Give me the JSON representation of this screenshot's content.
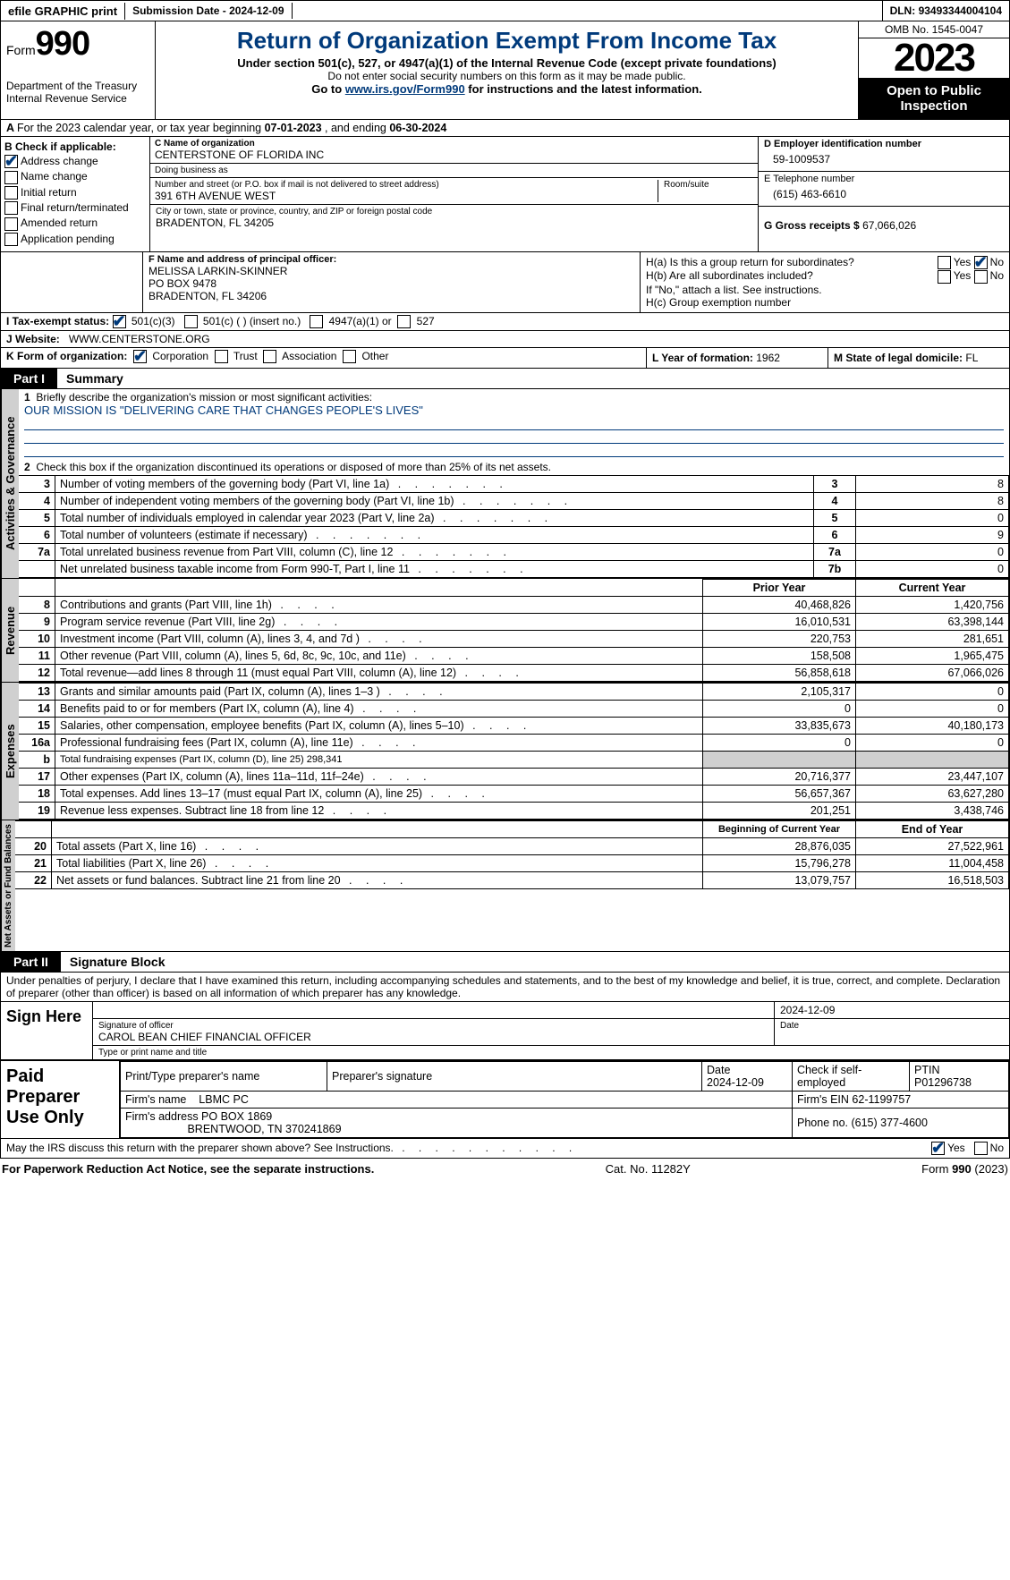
{
  "topbar": {
    "efile": "efile GRAPHIC print",
    "subdate_label": "Submission Date - ",
    "subdate": "2024-12-09",
    "dln_label": "DLN: ",
    "dln": "93493344004104"
  },
  "header": {
    "form": "Form",
    "form_num": "990",
    "dept": "Department of the Treasury",
    "irs": "Internal Revenue Service",
    "title": "Return of Organization Exempt From Income Tax",
    "subtitle": "Under section 501(c), 527, or 4947(a)(1) of the Internal Revenue Code (except private foundations)",
    "note": "Do not enter social security numbers on this form as it may be made public.",
    "goto_pre": "Go to ",
    "goto_link": "www.irs.gov/Form990",
    "goto_post": " for instructions and the latest information.",
    "omb": "OMB No. 1545-0047",
    "year": "2023",
    "open": "Open to Public Inspection"
  },
  "lineA": {
    "text_pre": "For the 2023 calendar year, or tax year beginning ",
    "begin": "07-01-2023",
    "mid": "   , and ending ",
    "end": "06-30-2024"
  },
  "boxB": {
    "title": "B Check if applicable:",
    "opts": [
      "Address change",
      "Name change",
      "Initial return",
      "Final return/terminated",
      "Amended return",
      "Application pending"
    ],
    "checked_idx": 0
  },
  "boxC": {
    "name_label": "C Name of organization",
    "name": "CENTERSTONE OF FLORIDA INC",
    "dba_label": "Doing business as",
    "dba": "",
    "street_label": "Number and street (or P.O. box if mail is not delivered to street address)",
    "street": "391 6TH AVENUE WEST",
    "room_label": "Room/suite",
    "city_label": "City or town, state or province, country, and ZIP or foreign postal code",
    "city": "BRADENTON, FL  34205"
  },
  "boxD": {
    "label": "D Employer identification number",
    "val": "59-1009537"
  },
  "boxE": {
    "label": "E Telephone number",
    "val": "(615) 463-6610"
  },
  "boxG": {
    "label": "G Gross receipts $ ",
    "val": "67,066,026"
  },
  "boxF": {
    "label": "F  Name and address of principal officer:",
    "l1": "MELISSA LARKIN-SKINNER",
    "l2": "PO BOX 9478",
    "l3": "BRADENTON, FL  34206"
  },
  "boxH": {
    "a_label": "H(a)  Is this a group return for subordinates?",
    "a_yes": "Yes",
    "a_no": "No",
    "a_checked": "No",
    "b_label": "H(b)  Are all subordinates included?",
    "b_note": "If \"No,\" attach a list. See instructions.",
    "c_label": "H(c)  Group exemption number "
  },
  "boxI": {
    "label": "I   Tax-exempt status:",
    "opt1": "501(c)(3)",
    "opt2": "501(c) (   ) (insert no.)",
    "opt3": "4947(a)(1) or",
    "opt4": "527",
    "checked": 1
  },
  "boxJ": {
    "label": "J   Website:",
    "val": "WWW.CENTERSTONE.ORG"
  },
  "boxK": {
    "label": "K Form of organization:",
    "opts": [
      "Corporation",
      "Trust",
      "Association",
      "Other"
    ],
    "checked": 0
  },
  "boxL": {
    "label": "L Year of formation: ",
    "val": "1962"
  },
  "boxM": {
    "label": "M State of legal domicile: ",
    "val": "FL"
  },
  "part1": {
    "num": "Part I",
    "title": "Summary"
  },
  "summary": {
    "q1": "Briefly describe the organization's mission or most significant activities:",
    "mission": "OUR MISSION IS \"DELIVERING CARE THAT CHANGES PEOPLE'S LIVES\"",
    "q2": "Check this box      if the organization discontinued its operations or disposed of more than 25% of its net assets."
  },
  "vert": {
    "gov": "Activities & Governance",
    "rev": "Revenue",
    "exp": "Expenses",
    "net": "Net Assets or Fund Balances"
  },
  "govRows": [
    {
      "n": "3",
      "t": "Number of voting members of the governing body (Part VI, line 1a)",
      "k": "3",
      "v": "8"
    },
    {
      "n": "4",
      "t": "Number of independent voting members of the governing body (Part VI, line 1b)",
      "k": "4",
      "v": "8"
    },
    {
      "n": "5",
      "t": "Total number of individuals employed in calendar year 2023 (Part V, line 2a)",
      "k": "5",
      "v": "0"
    },
    {
      "n": "6",
      "t": "Total number of volunteers (estimate if necessary)",
      "k": "6",
      "v": "9"
    },
    {
      "n": "7a",
      "t": "Total unrelated business revenue from Part VIII, column (C), line 12",
      "k": "7a",
      "v": "0"
    },
    {
      "n": "",
      "t": "Net unrelated business taxable income from Form 990-T, Part I, line 11",
      "k": "7b",
      "v": "0"
    }
  ],
  "colHdr": {
    "prior": "Prior Year",
    "current": "Current Year",
    "boy": "Beginning of Current Year",
    "eoy": "End of Year"
  },
  "revRows": [
    {
      "n": "8",
      "t": "Contributions and grants (Part VIII, line 1h)",
      "p": "40,468,826",
      "c": "1,420,756"
    },
    {
      "n": "9",
      "t": "Program service revenue (Part VIII, line 2g)",
      "p": "16,010,531",
      "c": "63,398,144"
    },
    {
      "n": "10",
      "t": "Investment income (Part VIII, column (A), lines 3, 4, and 7d )",
      "p": "220,753",
      "c": "281,651"
    },
    {
      "n": "11",
      "t": "Other revenue (Part VIII, column (A), lines 5, 6d, 8c, 9c, 10c, and 11e)",
      "p": "158,508",
      "c": "1,965,475"
    },
    {
      "n": "12",
      "t": "Total revenue—add lines 8 through 11 (must equal Part VIII, column (A), line 12)",
      "p": "56,858,618",
      "c": "67,066,026"
    }
  ],
  "expRows": [
    {
      "n": "13",
      "t": "Grants and similar amounts paid (Part IX, column (A), lines 1–3 )",
      "p": "2,105,317",
      "c": "0"
    },
    {
      "n": "14",
      "t": "Benefits paid to or for members (Part IX, column (A), line 4)",
      "p": "0",
      "c": "0"
    },
    {
      "n": "15",
      "t": "Salaries, other compensation, employee benefits (Part IX, column (A), lines 5–10)",
      "p": "33,835,673",
      "c": "40,180,173"
    },
    {
      "n": "16a",
      "t": "Professional fundraising fees (Part IX, column (A), line 11e)",
      "p": "0",
      "c": "0"
    },
    {
      "n": "b",
      "t": "Total fundraising expenses (Part IX, column (D), line 25) 298,341",
      "p": "",
      "c": "",
      "shade": true,
      "small": true
    },
    {
      "n": "17",
      "t": "Other expenses (Part IX, column (A), lines 11a–11d, 11f–24e)",
      "p": "20,716,377",
      "c": "23,447,107"
    },
    {
      "n": "18",
      "t": "Total expenses. Add lines 13–17 (must equal Part IX, column (A), line 25)",
      "p": "56,657,367",
      "c": "63,627,280"
    },
    {
      "n": "19",
      "t": "Revenue less expenses. Subtract line 18 from line 12",
      "p": "201,251",
      "c": "3,438,746"
    }
  ],
  "netRows": [
    {
      "n": "20",
      "t": "Total assets (Part X, line 16)",
      "p": "28,876,035",
      "c": "27,522,961"
    },
    {
      "n": "21",
      "t": "Total liabilities (Part X, line 26)",
      "p": "15,796,278",
      "c": "11,004,458"
    },
    {
      "n": "22",
      "t": "Net assets or fund balances. Subtract line 21 from line 20",
      "p": "13,079,757",
      "c": "16,518,503"
    }
  ],
  "part2": {
    "num": "Part II",
    "title": "Signature Block"
  },
  "perjury": "Under penalties of perjury, I declare that I have examined this return, including accompanying schedules and statements, and to the best of my knowledge and belief, it is true, correct, and complete. Declaration of preparer (other than officer) is based on all information of which preparer has any knowledge.",
  "sign": {
    "here": "Sign Here",
    "sig_officer": "Signature of officer",
    "officer_name": "CAROL BEAN  CHIEF FINANCIAL OFFICER",
    "date_label": "Date",
    "date_val": "2024-12-09",
    "type_label": "Type or print name and title"
  },
  "paid": {
    "title": "Paid Preparer Use Only",
    "h1": "Print/Type preparer's name",
    "h2": "Preparer's signature",
    "h3": "Date",
    "h3v": "2024-12-09",
    "h4": "Check        if self-employed",
    "h5": "PTIN",
    "h5v": "P01296738",
    "firm_name_l": "Firm's name",
    "firm_name": "LBMC PC",
    "firm_ein_l": "Firm's EIN ",
    "firm_ein": "62-1199757",
    "firm_addr_l": "Firm's address ",
    "firm_addr1": "PO BOX 1869",
    "firm_addr2": "BRENTWOOD, TN  370241869",
    "phone_l": "Phone no. ",
    "phone": "(615) 377-4600"
  },
  "discuss": {
    "q": "May the IRS discuss this return with the preparer shown above? See Instructions.",
    "yes": "Yes",
    "no": "No",
    "checked": "Yes"
  },
  "footer": {
    "left": "For Paperwork Reduction Act Notice, see the separate instructions.",
    "mid": "Cat. No. 11282Y",
    "right_pre": "Form ",
    "right_b": "990",
    "right_post": " (2023)"
  },
  "colors": {
    "accent": "#003a7b",
    "shade": "#d0d0d0"
  }
}
